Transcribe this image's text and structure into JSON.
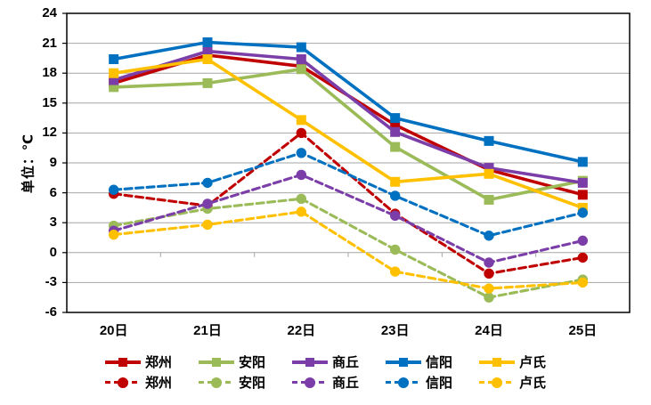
{
  "chart_data": {
    "type": "line",
    "title": "",
    "ylabel": "单位：℃",
    "xlabel": "",
    "categories": [
      "20日",
      "21日",
      "22日",
      "23日",
      "24日",
      "25日"
    ],
    "ylim": [
      -6,
      24
    ],
    "ytick_step": 3,
    "yticks": [
      24,
      21,
      18,
      15,
      12,
      9,
      6,
      3,
      0,
      -3,
      -6
    ],
    "grid": true,
    "legend_position": "bottom",
    "axis_color": "#000000",
    "gridline_color": "#A6A6A6",
    "series": [
      {
        "id": "zhengzhou-high",
        "name": "郑州",
        "color": "#C00000",
        "style": "solid",
        "marker": "square",
        "values": [
          17.0,
          19.8,
          18.7,
          12.8,
          8.3,
          5.8
        ]
      },
      {
        "id": "anyang-high",
        "name": "安阳",
        "color": "#9BBB59",
        "style": "solid",
        "marker": "square",
        "values": [
          16.6,
          17.0,
          18.4,
          10.6,
          5.3,
          7.2
        ]
      },
      {
        "id": "shangqiu-high",
        "name": "商丘",
        "color": "#7B3EA8",
        "style": "solid",
        "marker": "square",
        "values": [
          17.3,
          20.2,
          19.4,
          12.1,
          8.5,
          7.0
        ]
      },
      {
        "id": "xinyang-high",
        "name": "信阳",
        "color": "#0070C0",
        "style": "solid",
        "marker": "square",
        "values": [
          19.4,
          21.1,
          20.6,
          13.5,
          11.2,
          9.1
        ]
      },
      {
        "id": "lushi-high",
        "name": "卢氏",
        "color": "#FFC000",
        "style": "solid",
        "marker": "square",
        "values": [
          18.0,
          19.4,
          13.3,
          7.1,
          7.9,
          4.5
        ]
      },
      {
        "id": "zhengzhou-low",
        "name": "郑州",
        "color": "#C00000",
        "style": "dashed",
        "marker": "circle",
        "values": [
          5.9,
          4.7,
          12.0,
          3.9,
          -2.1,
          -0.5
        ]
      },
      {
        "id": "anyang-low",
        "name": "安阳",
        "color": "#9BBB59",
        "style": "dashed",
        "marker": "circle",
        "values": [
          2.7,
          4.4,
          5.4,
          0.3,
          -4.5,
          -2.7
        ]
      },
      {
        "id": "shangqiu-low",
        "name": "商丘",
        "color": "#7B3EA8",
        "style": "dashed",
        "marker": "circle",
        "values": [
          2.2,
          4.9,
          7.8,
          3.7,
          -1.0,
          1.2
        ]
      },
      {
        "id": "xinyang-low",
        "name": "信阳",
        "color": "#0070C0",
        "style": "dashed",
        "marker": "circle",
        "values": [
          6.3,
          7.0,
          10.0,
          5.7,
          1.7,
          4.0
        ]
      },
      {
        "id": "lushi-low",
        "name": "卢氏",
        "color": "#FFC000",
        "style": "dashed",
        "marker": "circle",
        "values": [
          1.8,
          2.8,
          4.1,
          -1.9,
          -3.6,
          -3.0
        ]
      }
    ]
  }
}
